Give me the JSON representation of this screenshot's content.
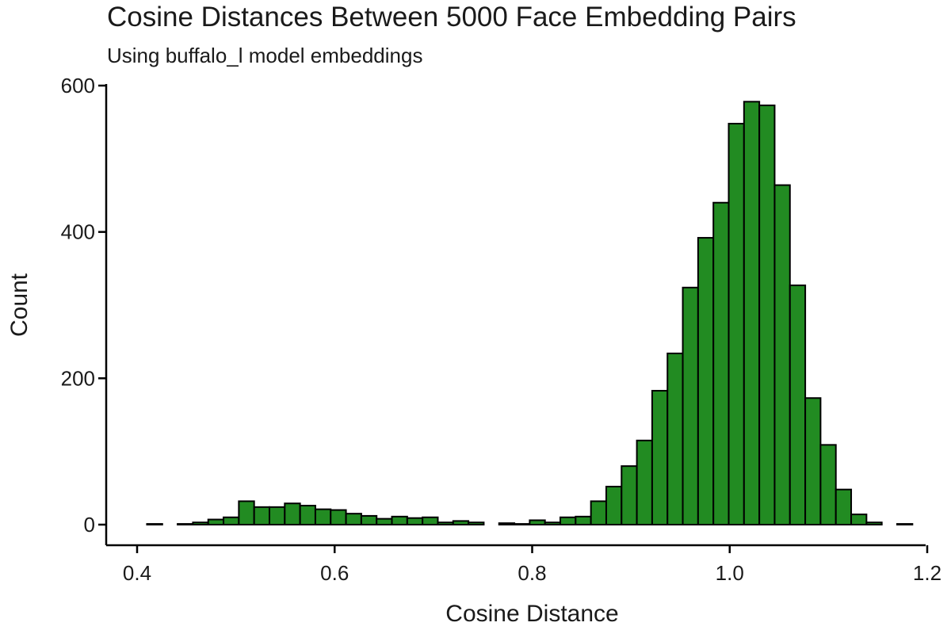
{
  "chart_data": {
    "type": "bar",
    "title": "Cosine Distances Between 5000 Face Embedding Pairs",
    "subtitle": "Using buffalo_l model embeddings",
    "xlabel": "Cosine Distance",
    "ylabel": "Count",
    "xlim": [
      0.4,
      1.2
    ],
    "ylim": [
      0,
      600
    ],
    "x_ticks": [
      0.4,
      0.6,
      0.8,
      1.0,
      1.2
    ],
    "x_tick_labels": [
      "0.4",
      "0.6",
      "0.8",
      "1.0",
      "1.2"
    ],
    "y_ticks": [
      0,
      200,
      400,
      600
    ],
    "y_tick_labels": [
      "0",
      "200",
      "400",
      "600"
    ],
    "bar_color": "#228B22",
    "bar_edge_color": "#000000",
    "grid": false,
    "bin_width": 0.0155,
    "bin_starts": [
      0.41,
      0.4255,
      0.441,
      0.4565,
      0.472,
      0.4875,
      0.503,
      0.5185,
      0.534,
      0.5495,
      0.565,
      0.5805,
      0.596,
      0.6115,
      0.627,
      0.6425,
      0.658,
      0.6735,
      0.689,
      0.7045,
      0.72,
      0.7355,
      0.751,
      0.7665,
      0.782,
      0.7975,
      0.813,
      0.8285,
      0.844,
      0.8595,
      0.875,
      0.8905,
      0.906,
      0.9215,
      0.937,
      0.9525,
      0.968,
      0.9835,
      0.999,
      1.0145,
      1.03,
      1.0455,
      1.061,
      1.0765,
      1.092,
      1.1075,
      1.123,
      1.1385,
      1.154,
      1.1695
    ],
    "values": [
      1,
      0,
      1,
      3,
      7,
      10,
      32,
      24,
      24,
      29,
      26,
      21,
      20,
      15,
      12,
      8,
      11,
      9,
      10,
      3,
      5,
      3,
      0,
      2,
      1,
      6,
      3,
      10,
      11,
      32,
      52,
      80,
      115,
      183,
      234,
      324,
      392,
      440,
      548,
      578,
      573,
      464,
      327,
      173,
      109,
      48,
      14,
      3,
      0,
      1
    ]
  }
}
